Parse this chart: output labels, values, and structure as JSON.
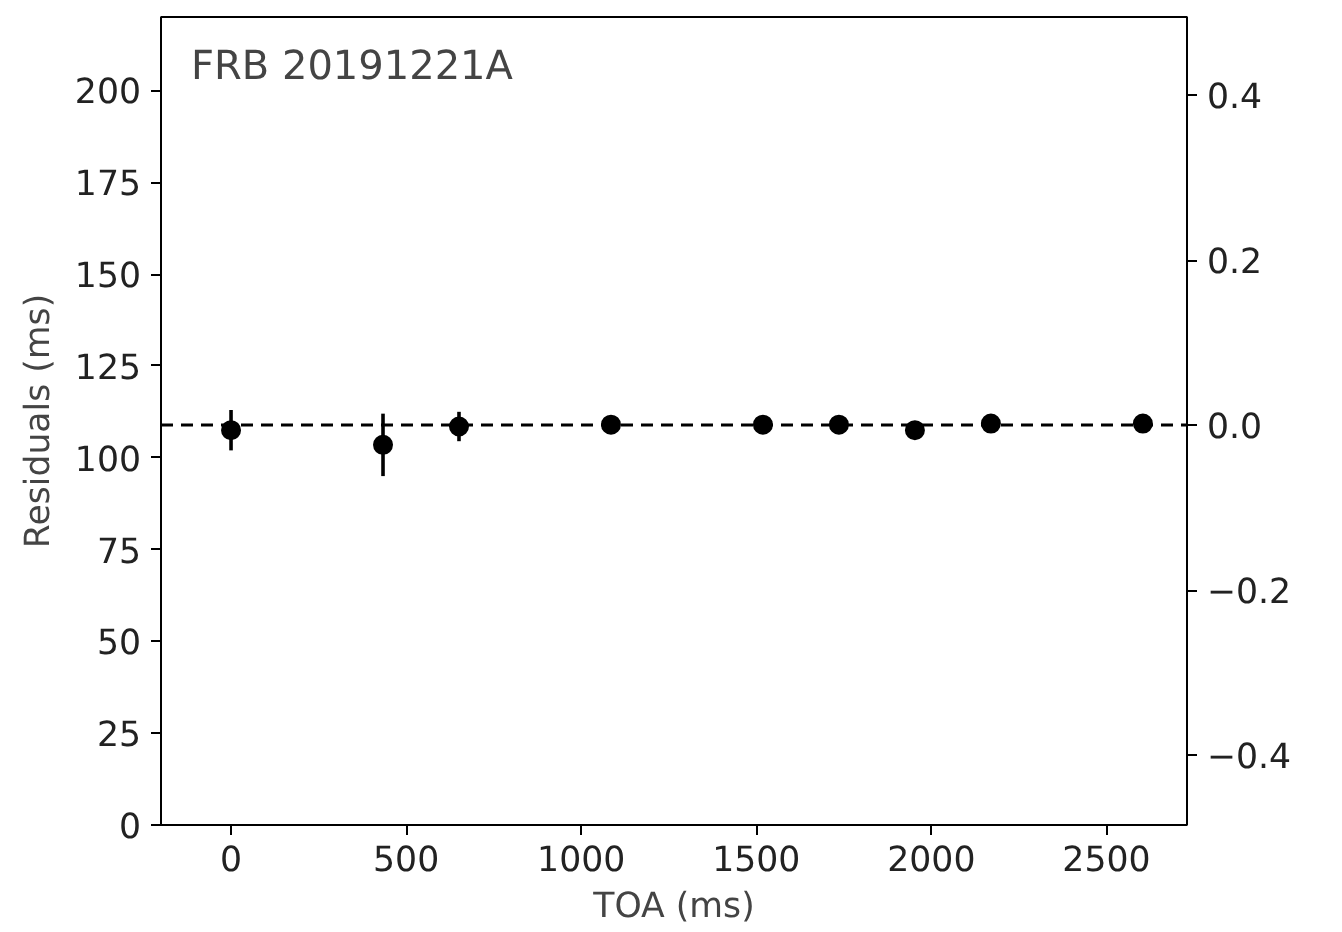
{
  "chart_data": {
    "type": "scatter",
    "annotations": [
      "FRB 20191221A"
    ],
    "xlabel": "TOA (ms)",
    "ylabel": "Residuals (ms)",
    "x": [
      0,
      434,
      651,
      1085,
      1519,
      1736,
      1953,
      2170,
      2604
    ],
    "series": [
      {
        "color": "#000000",
        "values": [
          107.5,
          103.5,
          108.5,
          109,
          109,
          109,
          107.5,
          109.3,
          109.3
        ],
        "errors": [
          5.5,
          8.5,
          4,
          null,
          null,
          null,
          null,
          null,
          null
        ]
      }
    ],
    "xlim": [
      -200,
      2730
    ],
    "xticks": [
      0,
      500,
      1000,
      1500,
      2000,
      2500
    ],
    "ylim": [
      0,
      220
    ],
    "yticks": [
      0,
      25,
      50,
      75,
      100,
      125,
      150,
      175,
      200
    ],
    "y2lim": [
      -0.485,
      0.495
    ],
    "y2ticks": [
      {
        "value": -0.4,
        "label": "−0.4"
      },
      {
        "value": -0.2,
        "label": "−0.2"
      },
      {
        "value": 0,
        "label": "0.0"
      },
      0.2,
      0.4
    ],
    "ref_lines": [
      {
        "axis": "y2",
        "value": 0,
        "color": "#000000",
        "line_style": "dashed"
      }
    ],
    "marker": "circle",
    "grid": false
  }
}
